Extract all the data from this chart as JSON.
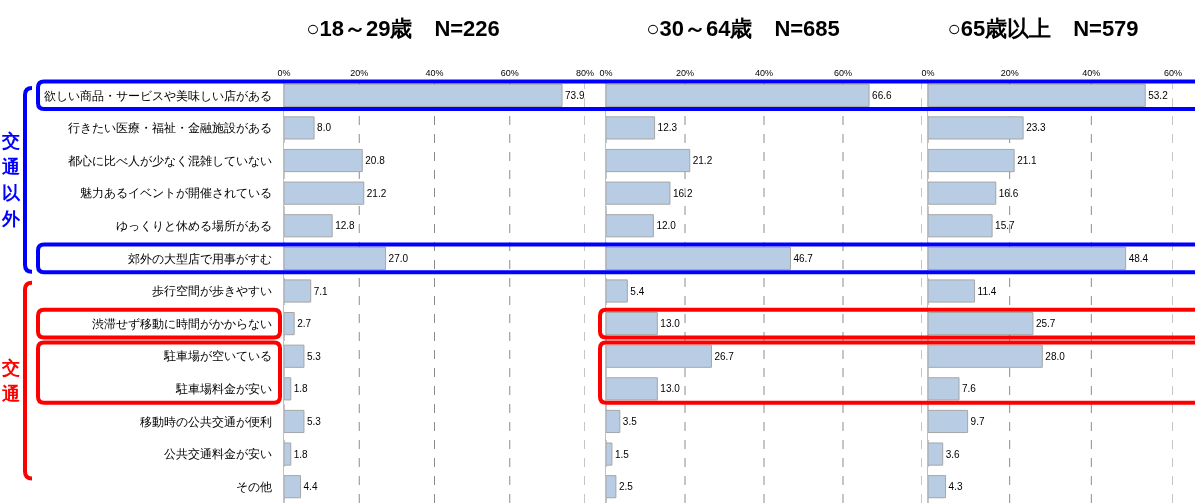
{
  "chart_data": [
    {
      "type": "bar",
      "orientation": "horizontal",
      "title": "○18～29歳　N=226",
      "categories": [
        "欲しい商品・サービスや美味しい店がある",
        "行きたい医療・福祉・金融施設がある",
        "都心に比べ人が少なく混雑していない",
        "魅力あるイベントが開催されている",
        "ゆっくりと休める場所がある",
        "郊外の大型店で用事がすむ",
        "歩行空間が歩きやすい",
        "渋滞せず移動に時間がかからない",
        "駐車場が空いている",
        "駐車場料金が安い",
        "移動時の公共交通が便利",
        "公共交通料金が安い",
        "その他"
      ],
      "values": [
        73.9,
        8.0,
        20.8,
        21.2,
        12.8,
        27.0,
        7.1,
        2.7,
        5.3,
        1.8,
        5.3,
        1.8,
        4.4
      ],
      "value_labels": [
        "73.9",
        "8.0",
        "20.8",
        "21.2",
        "12.8",
        "27.0",
        "7.1",
        "2.7",
        "5.3",
        "1.8",
        "5.3",
        "1.8",
        "4.4"
      ],
      "color": "#b8cce4",
      "xlim": [
        0,
        80
      ],
      "xticks": [
        {
          "value": 0,
          "label": "0%"
        },
        {
          "value": 20,
          "label": "20%"
        },
        {
          "value": 40,
          "label": "40%"
        },
        {
          "value": 60,
          "label": "60%"
        },
        {
          "value": 80,
          "label": "80%"
        }
      ],
      "grid": "x",
      "annotations": [
        "交通以外",
        "交通"
      ]
    },
    {
      "type": "bar",
      "orientation": "horizontal",
      "title": "○30～64歳　N=685",
      "categories": [
        null,
        null,
        null,
        null,
        null,
        null,
        null,
        null,
        null,
        null,
        null,
        null,
        null
      ],
      "values": [
        66.6,
        12.3,
        21.2,
        16.2,
        12.0,
        46.7,
        5.4,
        13.0,
        26.7,
        13.0,
        3.5,
        1.5,
        2.5
      ],
      "value_labels": [
        "66.6",
        "12.3",
        "21.2",
        "16.2",
        "12.0",
        "46.7",
        "5.4",
        "13.0",
        "26.7",
        "13.0",
        "3.5",
        "1.5",
        "2.5"
      ],
      "color": "#b8cce4",
      "xlim": [
        0,
        80
      ],
      "xticks": [
        {
          "value": 0,
          "label": "0%"
        },
        {
          "value": 20,
          "label": "20%"
        },
        {
          "value": 40,
          "label": "40%"
        },
        {
          "value": 60,
          "label": "60%"
        },
        {
          "value": 80,
          "label": null
        }
      ],
      "grid": "x",
      "tick_labels": "x"
    },
    {
      "type": "bar",
      "orientation": "horizontal",
      "title": "○65歳以上　N=579",
      "categories": [
        null,
        null,
        null,
        null,
        null,
        null,
        null,
        null,
        null,
        null,
        null,
        null,
        null
      ],
      "values": [
        53.2,
        23.3,
        21.1,
        16.6,
        15.7,
        48.4,
        11.4,
        25.7,
        28.0,
        7.6,
        9.7,
        3.6,
        4.3
      ],
      "value_labels": [
        "53.2",
        "23.3",
        "21.1",
        "16.6",
        "15.7",
        "48.4",
        "11.4",
        "25.7",
        "28.0",
        "7.6",
        "9.7",
        "3.6",
        "4.3"
      ],
      "color": "#b8cce4",
      "xlim": [
        0,
        60
      ],
      "xticks": [
        {
          "value": 0,
          "label": "0%"
        },
        {
          "value": 20,
          "label": "20%"
        },
        {
          "value": 40,
          "label": "40%"
        },
        {
          "value": 60,
          "label": "60%"
        }
      ],
      "grid": "x",
      "tick_labels": "x"
    }
  ]
}
